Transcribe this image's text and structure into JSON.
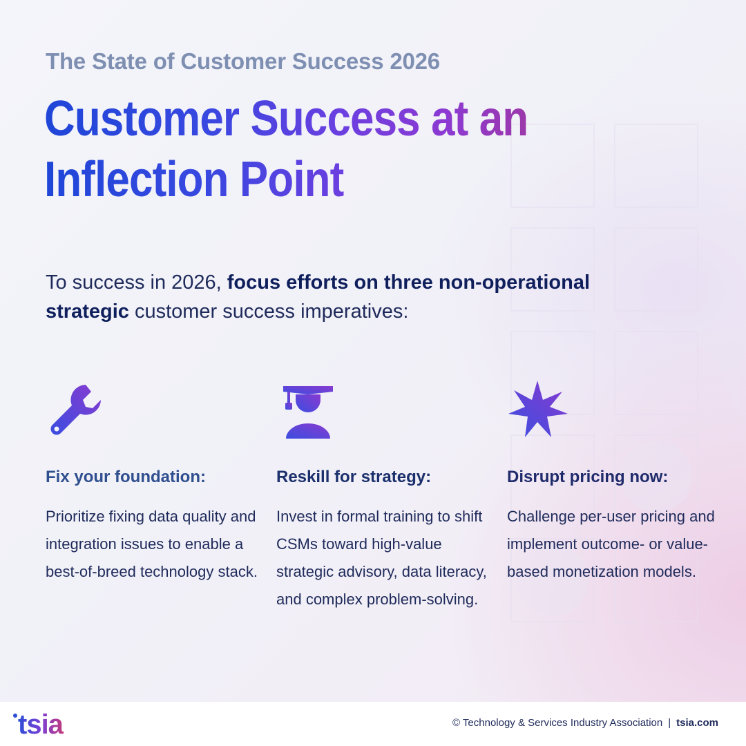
{
  "eyebrow": "The State of Customer Success 2026",
  "headline": {
    "line1": "Customer Success at an",
    "line2": "Inflection Point"
  },
  "intro": {
    "lead": "To success in 2026, ",
    "emphasis": "focus efforts on three non-operational strategic",
    "tail": " customer success imperatives:"
  },
  "imperatives": [
    {
      "icon": "wrench-icon",
      "title": "Fix your foundation:",
      "title_color": "#2f4f8f",
      "body": "Prioritize fixing data quality and integration issues to enable a best-of-breed technology stack."
    },
    {
      "icon": "graduate-icon",
      "title": "Reskill for strategy:",
      "title_color": "#1a2f6b",
      "body": "Invest in formal training to shift CSMs toward high-value strategic advisory, data literacy, and complex problem-solving."
    },
    {
      "icon": "starburst-icon",
      "title": "Disrupt pricing now:",
      "title_color": "#1f2a6b",
      "body": "Challenge per-user pricing and implement outcome- or value-based monetization models."
    }
  ],
  "footer": {
    "logo_text": "tsia",
    "copyright": "© Technology & Services Industry Association",
    "separator": "|",
    "site": "tsia.com"
  },
  "colors": {
    "brand_blue": "#1f46d8",
    "brand_purple": "#8c3ad2",
    "brand_magenta": "#a0379e",
    "navy_text": "#1e2a5a"
  }
}
